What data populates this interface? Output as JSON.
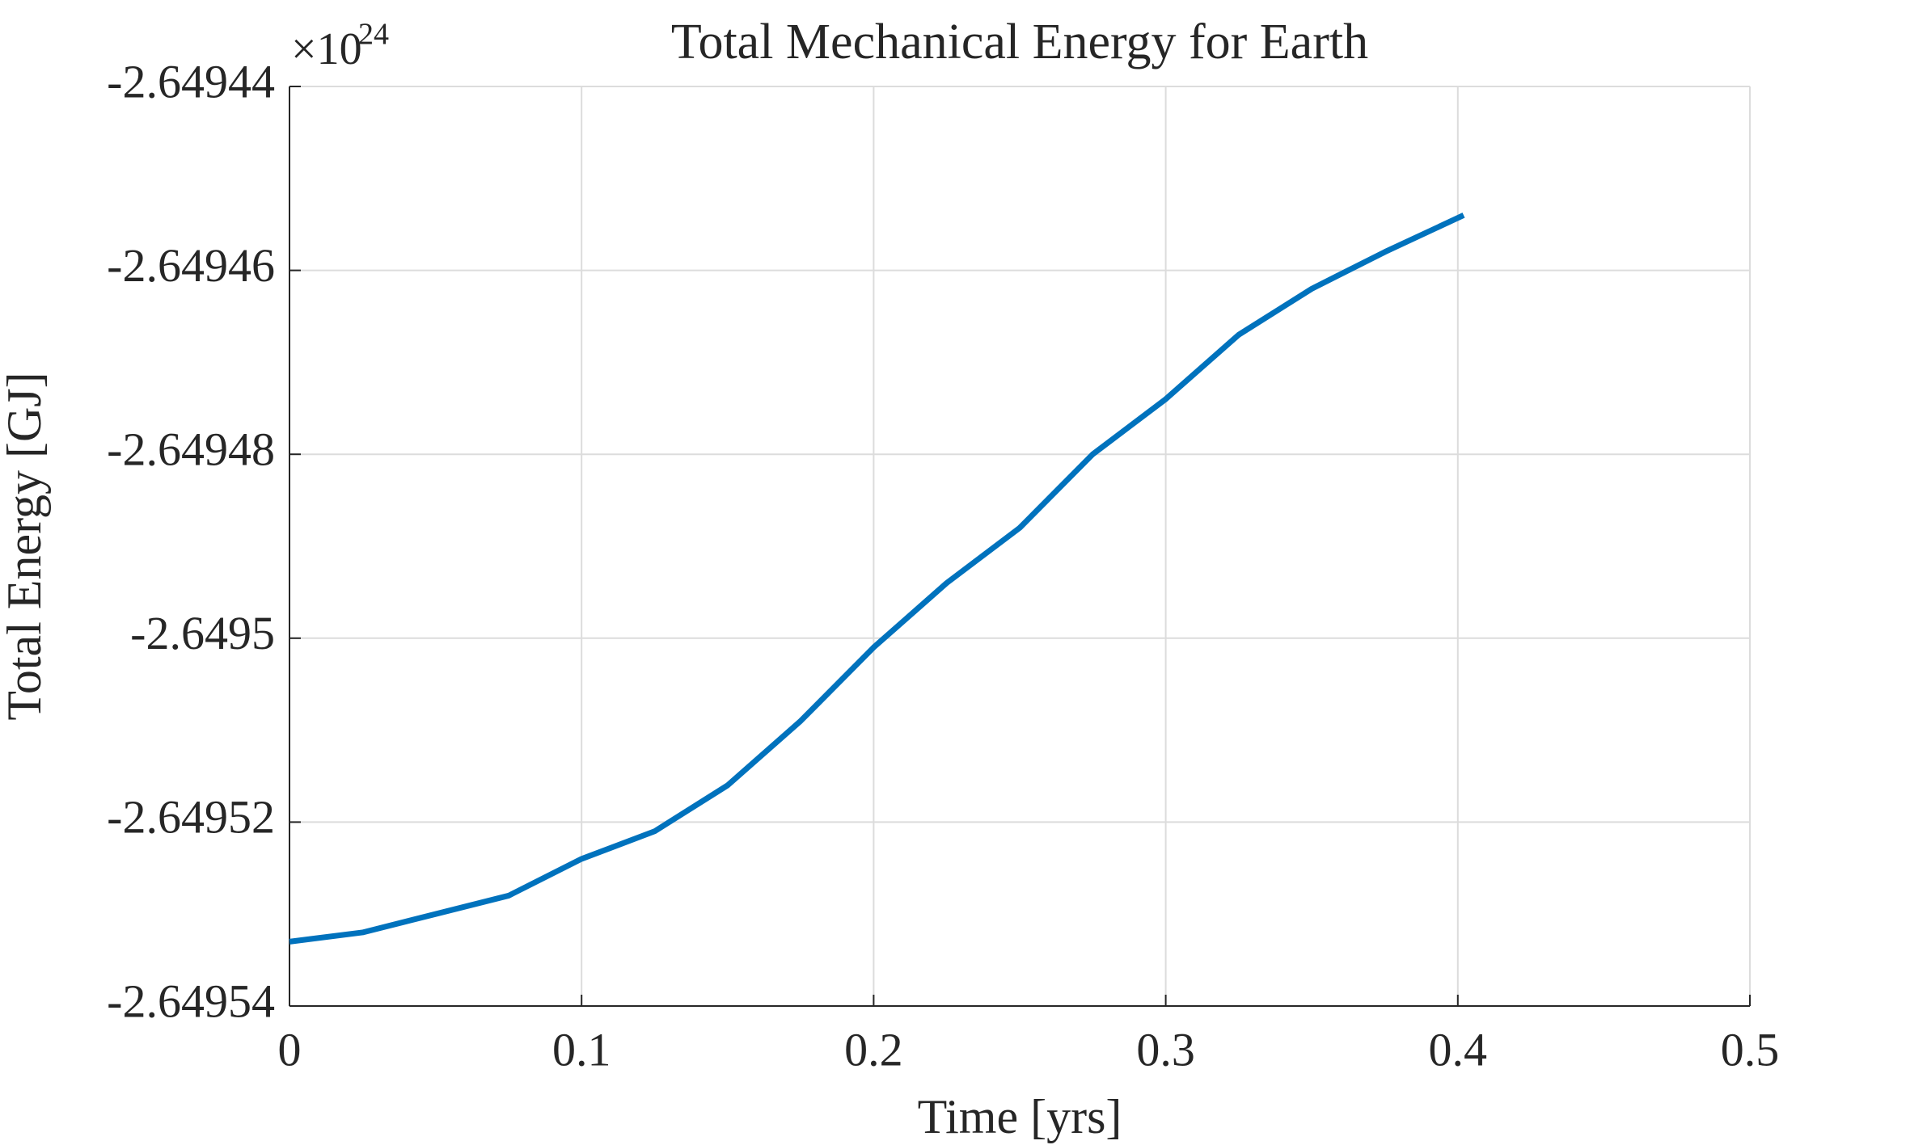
{
  "chart_data": {
    "type": "line",
    "title": "Total Mechanical Energy for Earth",
    "x_label": "Time [yrs]",
    "y_label": "Total Energy [GJ]",
    "y_multiplier": {
      "base": "×10",
      "power": 24
    },
    "x": [
      0,
      0.025,
      0.05,
      0.075,
      0.1,
      0.125,
      0.15,
      0.175,
      0.2,
      0.225,
      0.25,
      0.275,
      0.3,
      0.325,
      0.35,
      0.375,
      0.402
    ],
    "series": [
      {
        "color": "#0072bd",
        "values": [
          -2.649533,
          -2.649532,
          -2.64953,
          -2.649528,
          -2.649524,
          -2.649521,
          -2.649516,
          -2.649509,
          -2.649501,
          -2.649494,
          -2.649488,
          -2.64948,
          -2.649474,
          -2.649467,
          -2.649462,
          -2.649458,
          -2.649454
        ]
      }
    ],
    "xlim": [
      0,
      0.5
    ],
    "xticks": [
      0,
      0.1,
      0.2,
      0.3,
      0.4,
      0.5
    ],
    "ylim": [
      -2.64954,
      -2.64944
    ],
    "yticks": [
      -2.64954,
      -2.64952,
      -2.6495,
      -2.64948,
      -2.64946,
      -2.64944
    ],
    "grid": true
  }
}
